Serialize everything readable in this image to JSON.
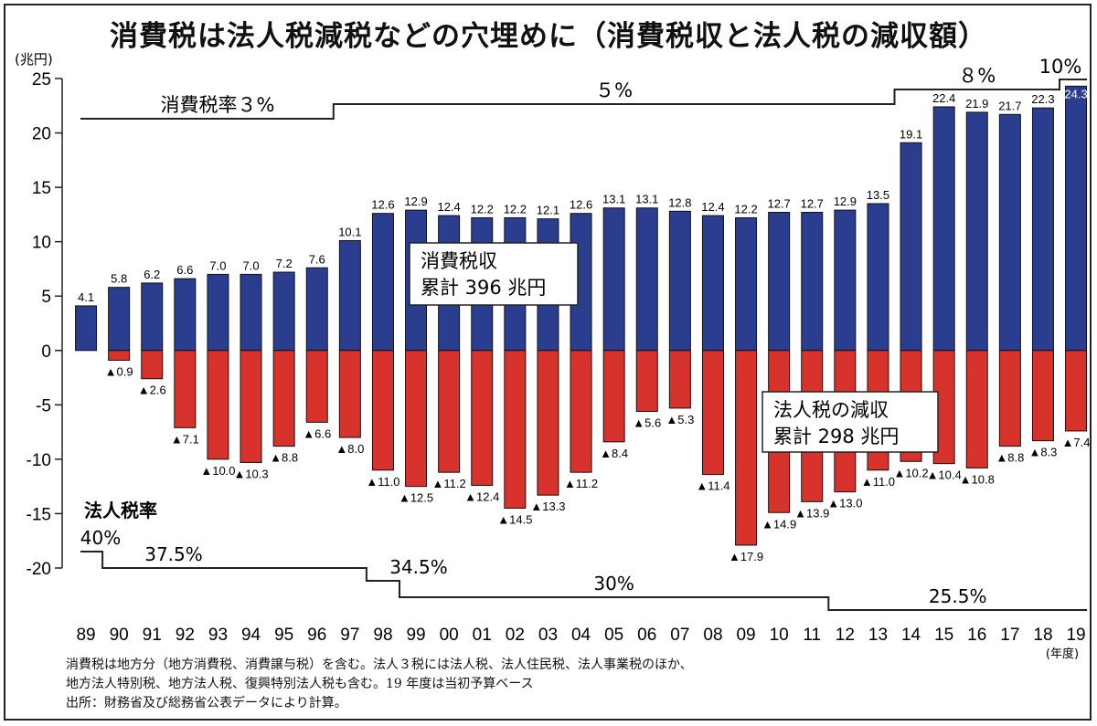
{
  "title": "消費税は法人税減税などの穴埋めに（消費税収と法人税の減収額）",
  "unit_label": "(兆円)",
  "x_axis_unit": "(年度)",
  "colors": {
    "consumption": "#2a3d8f",
    "corporate": "#d8322c",
    "line": "#222222"
  },
  "consumption_tax_rate_label": "消費税率３%",
  "consumption_tax_rates": [
    {
      "label": "消費税率３%",
      "from": "89",
      "to": "96"
    },
    {
      "label": "５%",
      "from": "97",
      "to": "13"
    },
    {
      "label": "８%",
      "from": "14",
      "to": "18"
    },
    {
      "label": "10%",
      "from": "19",
      "to": "19"
    }
  ],
  "corporate_tax_rate_label": "法人税率",
  "corporate_tax_rates": [
    {
      "label": "40%",
      "from": "89",
      "to": "89"
    },
    {
      "label": "37.5%",
      "from": "90",
      "to": "97"
    },
    {
      "label": "34.5%",
      "from": "98",
      "to": "98"
    },
    {
      "label": "30%",
      "from": "99",
      "to": "11"
    },
    {
      "label": "25.5%",
      "from": "12",
      "to": "19"
    }
  ],
  "annotations": [
    {
      "line1": "消費税収",
      "line2": "累計 396 兆円"
    },
    {
      "line1": "法人税の減収",
      "line2": "累計 298 兆円"
    }
  ],
  "notes": [
    "消費税は地方分（地方消費税、消費譲与税）を含む。法人３税には法人税、法人住民税、法人事業税のほか、",
    "地方法人特別税、地方法人税、復興特別法人税も含む。19 年度は当初予算ベース",
    "出所：財務省及び総務省公表データにより計算。"
  ],
  "chart_data": {
    "type": "bar",
    "categories": [
      "89",
      "90",
      "91",
      "92",
      "93",
      "94",
      "95",
      "96",
      "97",
      "98",
      "99",
      "00",
      "01",
      "02",
      "03",
      "04",
      "05",
      "06",
      "07",
      "08",
      "09",
      "10",
      "11",
      "12",
      "13",
      "14",
      "15",
      "16",
      "17",
      "18",
      "19"
    ],
    "series": [
      {
        "name": "消費税収",
        "values": [
          4.1,
          5.8,
          6.2,
          6.6,
          7.0,
          7.0,
          7.2,
          7.6,
          10.1,
          12.6,
          12.9,
          12.4,
          12.2,
          12.2,
          12.1,
          12.6,
          13.1,
          13.1,
          12.8,
          12.4,
          12.2,
          12.7,
          12.7,
          12.9,
          13.5,
          19.1,
          22.4,
          21.9,
          21.7,
          22.3,
          24.3
        ],
        "labels": [
          "4.1",
          "5.8",
          "6.2",
          "6.6",
          "7.0",
          "7.0",
          "7.2",
          "7.6",
          "10.1",
          "12.6",
          "12.9",
          "12.4",
          "12.2",
          "12.2",
          "12.1",
          "12.6",
          "13.1",
          "13.1",
          "12.8",
          "12.4",
          "12.2",
          "12.7",
          "12.7",
          "12.9",
          "13.5",
          "19.1",
          "22.4",
          "21.9",
          "21.7",
          "22.3",
          "24.3"
        ]
      },
      {
        "name": "法人税の減収",
        "values": [
          0,
          -0.9,
          -2.6,
          -7.1,
          -10.0,
          -10.3,
          -8.8,
          -6.6,
          -8.0,
          -11.0,
          -12.5,
          -11.2,
          -12.4,
          -14.5,
          -13.3,
          -11.2,
          -8.4,
          -5.6,
          -5.3,
          -11.4,
          -17.9,
          -14.9,
          -13.9,
          -13.0,
          -11.0,
          -10.2,
          -10.4,
          -10.8,
          -8.8,
          -8.3,
          -7.4
        ],
        "labels": [
          "",
          "▲0.9",
          "▲2.6",
          "▲7.1",
          "▲10.0",
          "▲10.3",
          "▲8.8",
          "▲6.6",
          "▲8.0",
          "▲11.0",
          "▲12.5",
          "▲11.2",
          "▲12.4",
          "▲14.5",
          "▲13.3",
          "▲11.2",
          "▲8.4",
          "▲5.6",
          "▲5.3",
          "▲11.4",
          "▲17.9",
          "▲14.9",
          "▲13.9",
          "▲13.0",
          "▲11.0",
          "▲10.2",
          "▲10.4",
          "▲10.8",
          "▲8.8",
          "▲8.3",
          "▲7.4"
        ]
      }
    ],
    "ylim": [
      -20,
      25
    ],
    "yticks": [
      25,
      20,
      15,
      10,
      5,
      0,
      -5,
      -10,
      -15,
      -20
    ],
    "ytick_labels": [
      "25",
      "20",
      "15",
      "10",
      "5",
      "0",
      "-5",
      "-10",
      "-15",
      "-20"
    ],
    "grid": false
  }
}
